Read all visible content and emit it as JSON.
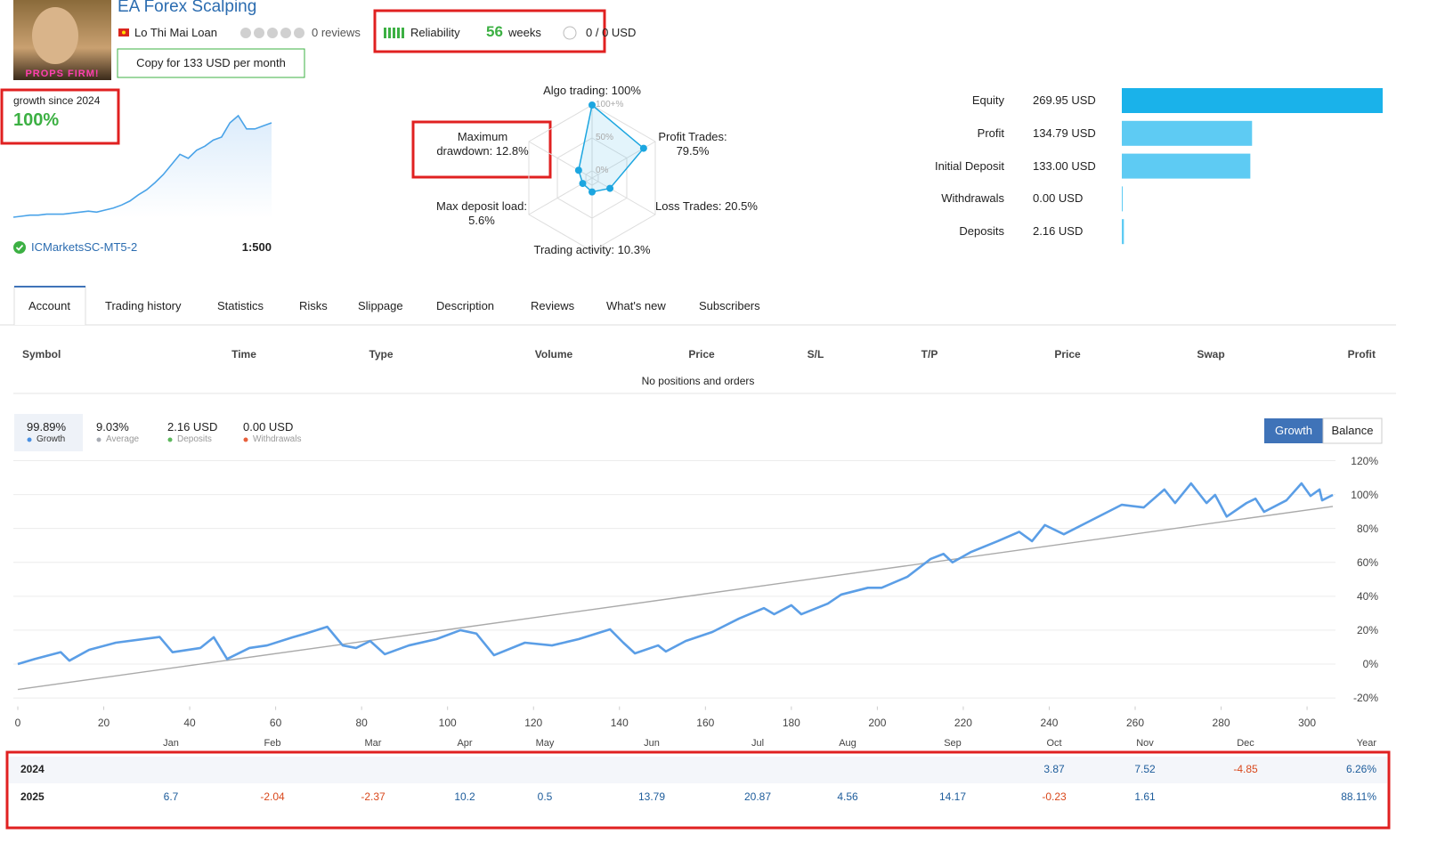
{
  "header": {
    "avatar_text": "PROPS FIRM!",
    "title": "EA Forex Scalping",
    "author": "Lo Thi Mai Loan",
    "reviews": "0 reviews",
    "reliability": "Reliability",
    "weeks": "56",
    "weeks_label": "weeks",
    "subscribers": "0 / 0 USD",
    "copy_button": "Copy for 133 USD per month"
  },
  "summary": {
    "growth_label": "growth since 2024",
    "growth_value": "100%",
    "server": "ICMarketsSC-MT5-2",
    "leverage": "1:500",
    "color": "#4aa3e8",
    "sparkline": [
      0,
      1,
      2,
      2,
      3,
      3,
      3,
      4,
      5,
      6,
      5,
      7,
      9,
      12,
      16,
      22,
      27,
      34,
      42,
      52,
      62,
      58,
      66,
      70,
      76,
      79,
      93,
      100,
      87,
      87,
      90,
      93
    ]
  },
  "radar": {
    "rlim": [
      0,
      100
    ],
    "color": "#1ca6e0",
    "ticks": [
      {
        "value": 100,
        "label": "100+%"
      },
      {
        "value": 50,
        "label": "50%"
      },
      {
        "value": 0,
        "label": "0%"
      }
    ],
    "axes": [
      {
        "label": "Algo trading: 100%",
        "value": 100
      },
      {
        "label": "Profit Trades: 79.5%",
        "value": 79.5
      },
      {
        "label": "Loss Trades: 20.5%",
        "value": 20.5
      },
      {
        "label": "Trading activity: 10.3%",
        "value": 10.3
      },
      {
        "label": "Max deposit load: 5.6%",
        "value": 5.6
      },
      {
        "label": "Maximum drawdown: 12.8%",
        "value": 12.8
      }
    ]
  },
  "balance": {
    "categories": [
      "Equity",
      "Profit",
      "Initial Deposit",
      "Withdrawals",
      "Deposits"
    ],
    "values": [
      269.95,
      134.79,
      133.0,
      0.0,
      2.16
    ],
    "value_labels": [
      "269.95 USD",
      "134.79 USD",
      "133.00 USD",
      "0.00 USD",
      "2.16 USD"
    ],
    "colors": [
      "#1ab2ea",
      "#5ecbf3",
      "#5ecbf3",
      "#5ecbf3",
      "#5ecbf3"
    ]
  },
  "tabs": [
    "Account",
    "Trading history",
    "Statistics",
    "Risks",
    "Slippage",
    "Description",
    "Reviews",
    "What's new",
    "Subscribers"
  ],
  "positions": {
    "columns": [
      "Symbol",
      "Time",
      "Type",
      "Volume",
      "Price",
      "S/L",
      "T/P",
      "Price",
      "Swap",
      "Profit"
    ],
    "empty": "No positions and orders"
  },
  "growth_chart": {
    "type": "line",
    "stats": [
      {
        "value": "99.89%",
        "label": "Growth",
        "color": "#4a90e2"
      },
      {
        "value": "9.03%",
        "label": "Average",
        "color": "#a8acb4"
      },
      {
        "value": "2.16 USD",
        "label": "Deposits",
        "color": "#5cb85c"
      },
      {
        "value": "0.00 USD",
        "label": "Withdrawals",
        "color": "#e8603c"
      }
    ],
    "buttons": [
      "Growth",
      "Balance"
    ],
    "xlim": [
      -1,
      308
    ],
    "ylim": [
      -25,
      125
    ],
    "xticks": [
      0,
      20,
      40,
      60,
      80,
      100,
      120,
      140,
      160,
      180,
      200,
      220,
      240,
      260,
      280,
      300
    ],
    "yticks": [
      {
        "value": -20,
        "label": "-20%"
      },
      {
        "value": 0,
        "label": "0%"
      },
      {
        "value": 20,
        "label": "20%"
      },
      {
        "value": 40,
        "label": "40%"
      },
      {
        "value": 60,
        "label": "60%"
      },
      {
        "value": 80,
        "label": "80%"
      },
      {
        "value": 100,
        "label": "100%"
      },
      {
        "value": 120,
        "label": "120%"
      }
    ],
    "grid": true,
    "series": [
      {
        "color": "#5b9ee6",
        "x": [
          0,
          4,
          10,
          12,
          16.6,
          22.8,
          33,
          36,
          42.5,
          45.6,
          48.7,
          53.9,
          58,
          64,
          67,
          72,
          75.6,
          78.7,
          82,
          85.4,
          91,
          97.4,
          103,
          106.7,
          110.8,
          118,
          124.3,
          130.5,
          137.8,
          140.9,
          143.6,
          149,
          150.8,
          155.4,
          161.6,
          167.8,
          173.6,
          176,
          180,
          182.3,
          188.5,
          191.6,
          197.8,
          201,
          207,
          212.4,
          215.4,
          217.5,
          221.7,
          228,
          233,
          236,
          239,
          243.4,
          250.7,
          256.9,
          262,
          266.8,
          269.3,
          273,
          276.6,
          278.6,
          281.3,
          285.9,
          288,
          290,
          295.2,
          298.7,
          300.8,
          302.9,
          303.5,
          306
        ],
        "values": [
          0,
          3,
          7,
          2,
          8.4,
          12.6,
          16,
          7,
          9.5,
          15.8,
          3,
          9.5,
          11,
          15.8,
          18,
          22,
          11,
          9.5,
          13.6,
          5.8,
          11,
          14.7,
          20,
          18,
          5.2,
          12.6,
          11,
          14.7,
          20.5,
          12.6,
          6.3,
          11,
          7.4,
          13.6,
          18.9,
          26.8,
          33,
          29.4,
          34.7,
          29.4,
          35.7,
          41,
          45,
          45,
          51.5,
          62,
          65,
          60,
          66,
          72.5,
          78,
          72.5,
          82,
          76.6,
          86,
          94,
          92.4,
          103,
          95,
          106.6,
          95,
          99.8,
          87,
          95,
          97.6,
          89.8,
          96.6,
          106.6,
          99.2,
          103,
          96.6,
          99.8
        ]
      },
      {
        "color": "#aaaaaa",
        "x": [
          0,
          306
        ],
        "values": [
          -15,
          93
        ]
      }
    ]
  },
  "monthly": {
    "columns": [
      "Jan",
      "Feb",
      "Mar",
      "Apr",
      "May",
      "Jun",
      "Jul",
      "Aug",
      "Sep",
      "Oct",
      "Nov",
      "Dec",
      "Year"
    ],
    "rows": [
      {
        "year": "2024",
        "values": [
          null,
          null,
          null,
          null,
          null,
          null,
          null,
          null,
          null,
          "3.87",
          "7.52",
          "-4.85",
          "6.26%"
        ]
      },
      {
        "year": "2025",
        "values": [
          "6.7",
          "-2.04",
          "-2.37",
          "10.2",
          "0.5",
          "13.79",
          "20.87",
          "4.56",
          "14.17",
          "-0.23",
          "1.61",
          null,
          "88.11%"
        ]
      }
    ]
  }
}
